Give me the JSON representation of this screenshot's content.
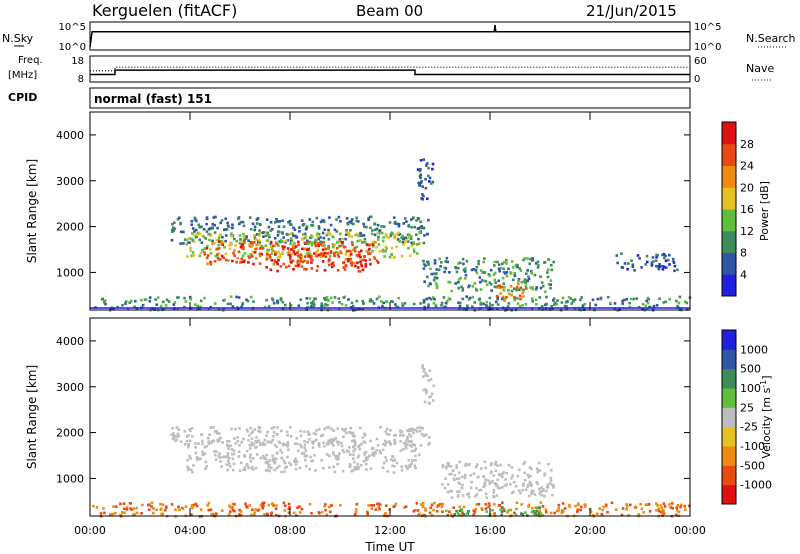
{
  "header": {
    "station": "Kerguelen (fitACF)",
    "beam": "Beam 00",
    "date": "21/Jun/2015"
  },
  "top_panels": {
    "nsky_label": "N.Sky",
    "nsky_tick_top": "10^5",
    "nsky_tick_bottom": "10^0",
    "nsearch_label": "N.Search",
    "nsearch_tick_top": "10^5",
    "nsearch_tick_bottom": "10^0",
    "freq_label_1": "Freq.",
    "freq_label_2": "[MHz]",
    "freq_tick_top": "18",
    "freq_tick_bottom": "8",
    "nave_label": "Nave",
    "nave_tick_top": "60",
    "nave_tick_bottom": "0",
    "cpid_label": "CPID",
    "cpid_value": "normal (fast) 151"
  },
  "colors": {
    "power": [
      "#1f1fe0",
      "#2e55a6",
      "#3a8c5a",
      "#5fbf3a",
      "#e8c020",
      "#f08a10",
      "#e84a10",
      "#e01010"
    ],
    "velocity": [
      "#e01010",
      "#e84a10",
      "#f08a10",
      "#e8c020",
      "#bdbdbd",
      "#5fbf3a",
      "#3a8c5a",
      "#2e55a6",
      "#1f1fe0"
    ]
  },
  "chart_data": [
    {
      "type": "line",
      "name": "N.Sky / N.Search",
      "x": [
        "00:00",
        "00:05",
        "16:10",
        "16:12",
        "16:14",
        "24:00"
      ],
      "y": [
        1,
        3000,
        3000,
        100000,
        3000,
        3000
      ],
      "scale": "log",
      "ylim": [
        1,
        100000
      ]
    },
    {
      "type": "line",
      "name": "Freq / Nave",
      "freq_mhz": {
        "x": [
          "00:00",
          "01:00",
          "01:00",
          "13:00",
          "13:00",
          "24:00"
        ],
        "y": [
          10.5,
          10.5,
          12.5,
          12.5,
          10.5,
          10.5
        ],
        "ylim": [
          8,
          18
        ]
      },
      "nave": {
        "x": [
          "00:00",
          "01:00",
          "01:00",
          "24:00"
        ],
        "y": [
          25,
          25,
          35,
          35
        ],
        "ylim": [
          0,
          60
        ]
      }
    },
    {
      "type": "heatmap",
      "title": "",
      "xlabel": "",
      "ylabel": "Slant Range [km]",
      "xlim": [
        "00:00",
        "24:00"
      ],
      "ylim": [
        180,
        4500
      ],
      "yticks": [
        "1000",
        "2000",
        "3000",
        "4000"
      ],
      "colorbar": {
        "label": "Power [dB]",
        "ticks": [
          "4",
          "8",
          "12",
          "16",
          "20",
          "24",
          "28"
        ],
        "range": [
          0,
          32
        ]
      },
      "regions": [
        {
          "x0": 3.2,
          "x1": 13.6,
          "y0": 1650,
          "y1": 2250,
          "value": 8
        },
        {
          "x0": 3.8,
          "x1": 13.2,
          "y0": 1350,
          "y1": 1900,
          "value": 16
        },
        {
          "x0": 4.5,
          "x1": 11.5,
          "y0": 1200,
          "y1": 1700,
          "value": 26
        },
        {
          "x0": 7.0,
          "x1": 11.0,
          "y0": 1050,
          "y1": 1450,
          "value": 28
        },
        {
          "x0": 13.0,
          "x1": 13.7,
          "y0": 2600,
          "y1": 3500,
          "value": 6
        },
        {
          "x0": 13.2,
          "x1": 18.5,
          "y0": 600,
          "y1": 1350,
          "value": 10
        },
        {
          "x0": 16.2,
          "x1": 17.4,
          "y0": 400,
          "y1": 800,
          "value": 24
        },
        {
          "x0": 21.0,
          "x1": 23.5,
          "y0": 1050,
          "y1": 1450,
          "value": 6
        },
        {
          "x0": 0.0,
          "x1": 24.0,
          "y0": 200,
          "y1": 500,
          "value": 10
        }
      ]
    },
    {
      "type": "heatmap",
      "title": "",
      "xlabel": "Time UT",
      "ylabel": "Slant Range [km]",
      "xlim": [
        "00:00",
        "24:00"
      ],
      "ylim": [
        180,
        4500
      ],
      "xticks": [
        "00:00",
        "04:00",
        "08:00",
        "12:00",
        "16:00",
        "20:00",
        "00:00"
      ],
      "yticks": [
        "1000",
        "2000",
        "3000",
        "4000"
      ],
      "colorbar": {
        "label": "Velocity [m s^-1]",
        "ticks": [
          "1000",
          "500",
          "100",
          "25",
          "-25",
          "-100",
          "-500",
          "-1000"
        ]
      },
      "regions": [
        {
          "x0": 3.8,
          "x1": 13.2,
          "y0": 1150,
          "y1": 1850,
          "value": 0
        },
        {
          "x0": 3.2,
          "x1": 13.6,
          "y0": 1750,
          "y1": 2150,
          "value": 0
        },
        {
          "x0": 14.0,
          "x1": 18.5,
          "y0": 600,
          "y1": 1400,
          "value": 0
        },
        {
          "x0": 13.2,
          "x1": 13.7,
          "y0": 2600,
          "y1": 3500,
          "value": 0
        },
        {
          "x0": 0.0,
          "x1": 24.0,
          "y0": 200,
          "y1": 500,
          "value": -100
        },
        {
          "x0": 14.0,
          "x1": 18.0,
          "y0": 200,
          "y1": 400,
          "value": 100
        }
      ]
    }
  ]
}
